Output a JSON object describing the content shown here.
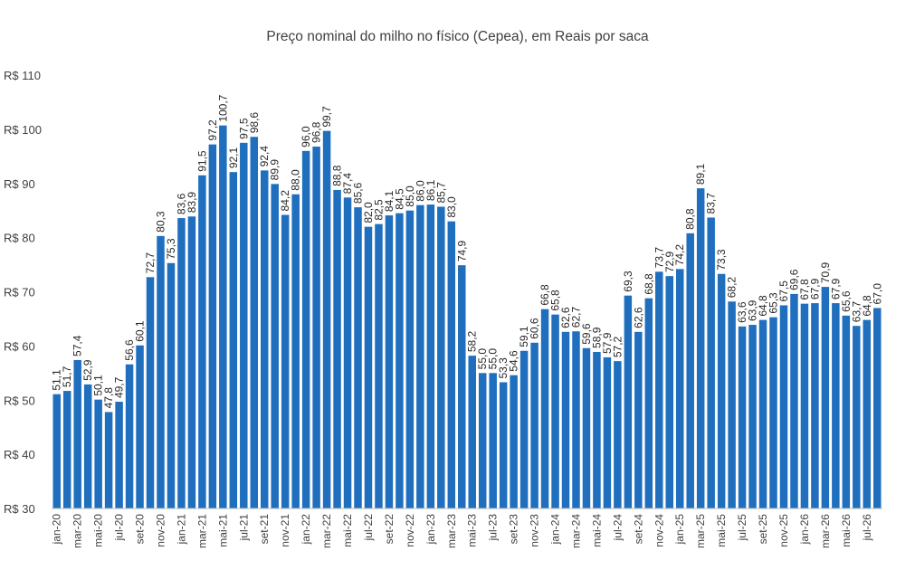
{
  "chart_data": {
    "type": "bar",
    "title": "Preço nominal do milho no físico (Cepea), em Reais por saca",
    "xlabel": "",
    "ylabel": "",
    "ylim": [
      30,
      110
    ],
    "y_ticks": [
      "R$ 30",
      "R$ 40",
      "R$ 50",
      "R$ 60",
      "R$ 70",
      "R$ 80",
      "R$ 90",
      "R$ 100",
      "R$ 110"
    ],
    "y_tick_values": [
      30,
      40,
      50,
      60,
      70,
      80,
      90,
      100,
      110
    ],
    "x_tick_labels": [
      "jan-20",
      "mar-20",
      "mai-20",
      "jul-20",
      "set-20",
      "nov-20",
      "jan-21",
      "mar-21",
      "mai-21",
      "jul-21",
      "set-21",
      "nov-21",
      "jan-22",
      "mar-22",
      "mai-22",
      "jul-22",
      "set-22",
      "nov-22",
      "jan-23",
      "mar-23",
      "mai-23",
      "jul-23",
      "set-23",
      "nov-23",
      "jan-24",
      "mar-24",
      "mai-24",
      "jul-24",
      "set-24",
      "nov-24",
      "jan-25",
      "mar-25",
      "mai-25",
      "jul-25",
      "set-25",
      "nov-25",
      "jan-26",
      "mar-26",
      "mai-26",
      "jul-26"
    ],
    "grid": false,
    "legend": "none",
    "bar_color": "#1F6FBE",
    "categories": [
      "jan-20",
      "fev-20",
      "mar-20",
      "abr-20",
      "mai-20",
      "jun-20",
      "jul-20",
      "ago-20",
      "set-20",
      "out-20",
      "nov-20",
      "dez-20",
      "jan-21",
      "fev-21",
      "mar-21",
      "abr-21",
      "mai-21",
      "jun-21",
      "jul-21",
      "ago-21",
      "set-21",
      "out-21",
      "nov-21",
      "dez-21",
      "jan-22",
      "fev-22",
      "mar-22",
      "abr-22",
      "mai-22",
      "jun-22",
      "jul-22",
      "ago-22",
      "set-22",
      "out-22",
      "nov-22",
      "dez-22",
      "jan-23",
      "fev-23",
      "mar-23",
      "abr-23",
      "mai-23",
      "jun-23",
      "jul-23",
      "ago-23",
      "set-23",
      "out-23",
      "nov-23",
      "dez-23",
      "jan-24",
      "fev-24",
      "mar-24",
      "abr-24",
      "mai-24",
      "jun-24",
      "jul-24",
      "ago-24",
      "set-24",
      "out-24",
      "nov-24",
      "dez-24",
      "jan-25",
      "fev-25",
      "mar-25",
      "abr-25",
      "mai-25",
      "jun-25",
      "jul-25",
      "ago-25",
      "set-25",
      "out-25",
      "nov-25",
      "dez-25",
      "jan-26",
      "fev-26",
      "mar-26",
      "abr-26",
      "mai-26",
      "jun-26",
      "jul-26",
      "ago-26"
    ],
    "values": [
      51.1,
      51.7,
      57.4,
      52.9,
      50.1,
      47.8,
      49.7,
      56.6,
      60.1,
      72.7,
      80.3,
      75.3,
      83.6,
      83.9,
      91.5,
      97.2,
      100.7,
      92.1,
      97.5,
      98.6,
      92.4,
      89.9,
      84.2,
      88.0,
      96.0,
      96.8,
      99.7,
      88.8,
      87.4,
      85.6,
      82.0,
      82.5,
      84.1,
      84.5,
      85.0,
      86.0,
      86.1,
      85.7,
      83.0,
      74.9,
      58.2,
      55.0,
      55.0,
      53.3,
      54.6,
      59.1,
      60.6,
      66.8,
      65.8,
      62.6,
      62.7,
      59.6,
      58.9,
      57.9,
      57.2,
      69.3,
      62.6,
      68.8,
      73.7,
      72.9,
      74.2,
      80.8,
      89.1,
      83.7,
      73.3,
      68.2,
      63.6,
      63.9,
      64.8,
      65.3,
      67.5,
      69.6,
      67.8,
      67.9,
      70.9,
      67.9,
      65.6,
      63.7,
      64.8,
      67.0
    ],
    "data_labels": [
      "51,1",
      "51,7",
      "57,4",
      "52,9",
      "50,1",
      "47,8",
      "49,7",
      "56,6",
      "60,1",
      "72,7",
      "80,3",
      "75,3",
      "83,6",
      "83,9",
      "91,5",
      "97,2",
      "100,7",
      "92,1",
      "97,5",
      "98,6",
      "92,4",
      "89,9",
      "84,2",
      "88,0",
      "96,0",
      "96,8",
      "99,7",
      "88,8",
      "87,4",
      "85,6",
      "82,0",
      "82,5",
      "84,1",
      "84,5",
      "85,0",
      "86,0",
      "86,1",
      "85,7",
      "83,0",
      "74,9",
      "58,2",
      "55,0",
      "55,0",
      "53,3",
      "54,6",
      "59,1",
      "60,6",
      "66,8",
      "65,8",
      "62,6",
      "62,7",
      "59,6",
      "58,9",
      "57,9",
      "57,2",
      "69,3",
      "62,6",
      "68,8",
      "73,7",
      "72,9",
      "74,2",
      "80,8",
      "89,1",
      "83,7",
      "73,3",
      "68,2",
      "63,6",
      "63,9",
      "64,8",
      "65,3",
      "67,5",
      "69,6",
      "67,8",
      "67,9",
      "70,9",
      "67,9",
      "65,6",
      "63,7",
      "64,8",
      "67,0"
    ]
  }
}
